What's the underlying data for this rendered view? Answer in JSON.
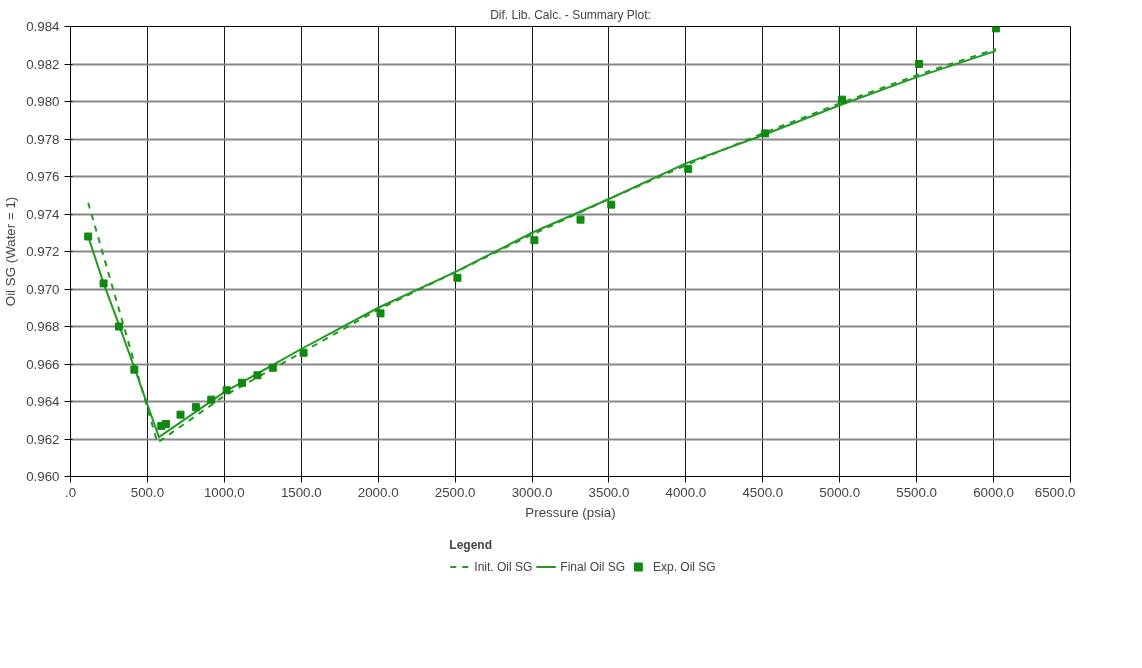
{
  "chart_data": {
    "type": "line",
    "title": "Dif. Lib. Calc. - Summary Plot:",
    "xlabel": "Pressure (psia)",
    "ylabel": "Oil SG (Water = 1)",
    "legend_title": "Legend",
    "xlim": [
      0,
      6500
    ],
    "xticks": [
      {
        "value": 0,
        "label": ".0"
      },
      {
        "value": 500,
        "label": "500.0"
      },
      {
        "value": 1000,
        "label": "1000.0"
      },
      {
        "value": 1500,
        "label": "1500.0"
      },
      {
        "value": 2000,
        "label": "2000.0"
      },
      {
        "value": 2500,
        "label": "2500.0"
      },
      {
        "value": 3000,
        "label": "3000.0"
      },
      {
        "value": 3500,
        "label": "3500.0"
      },
      {
        "value": 4000,
        "label": "4000.0"
      },
      {
        "value": 4500,
        "label": "4500.0"
      },
      {
        "value": 5000,
        "label": "5000.0"
      },
      {
        "value": 5500,
        "label": "5500.0"
      },
      {
        "value": 6000,
        "label": "6000.0"
      },
      {
        "value": 6500,
        "label": "6500.0"
      }
    ],
    "ylim": [
      0.96,
      0.984
    ],
    "yticks": [
      {
        "value": 0.96,
        "label": "0.960"
      },
      {
        "value": 0.962,
        "label": "0.962"
      },
      {
        "value": 0.964,
        "label": "0.964"
      },
      {
        "value": 0.966,
        "label": "0.966"
      },
      {
        "value": 0.968,
        "label": "0.968"
      },
      {
        "value": 0.97,
        "label": "0.970"
      },
      {
        "value": 0.972,
        "label": "0.972"
      },
      {
        "value": 0.974,
        "label": "0.974"
      },
      {
        "value": 0.976,
        "label": "0.976"
      },
      {
        "value": 0.978,
        "label": "0.978"
      },
      {
        "value": 0.98,
        "label": "0.980"
      },
      {
        "value": 0.982,
        "label": "0.982"
      },
      {
        "value": 0.984,
        "label": "0.984"
      }
    ],
    "grid": true,
    "legend": "bottom",
    "series": [
      {
        "name": "Init. Oil SG",
        "line_style": "dashed",
        "marker": "none",
        "color": "#229922",
        "x": [
          115,
          565,
          1000,
          1500,
          2000,
          2500,
          3000,
          3500,
          4000,
          4500,
          5000,
          5500,
          6015
        ],
        "values": [
          0.9746,
          0.9618,
          0.9643,
          0.9666,
          0.9689,
          0.9709,
          0.9729,
          0.9748,
          0.9766,
          0.9783,
          0.9799,
          0.9814,
          0.9828
        ]
      },
      {
        "name": "Final Oil SG",
        "line_style": "solid",
        "marker": "none",
        "color": "#229922",
        "x": [
          115,
          215,
          315,
          415,
          575,
          1000,
          1500,
          2000,
          2500,
          3000,
          3500,
          4000,
          4500,
          5000,
          5500,
          6015
        ],
        "values": [
          0.9728,
          0.9703,
          0.9681,
          0.9658,
          0.9621,
          0.9645,
          0.9668,
          0.969,
          0.9709,
          0.973,
          0.9748,
          0.9767,
          0.9782,
          0.9798,
          0.9813,
          0.9827
        ]
      },
      {
        "name": "Exp. Oil SG",
        "type": "scatter",
        "marker": "square",
        "color": "#118811",
        "x": [
          115,
          215,
          315,
          415,
          590,
          620,
          715,
          815,
          915,
          1015,
          1115,
          1215,
          1315,
          1515,
          2015,
          2515,
          3015,
          3315,
          3515,
          4015,
          4515,
          5015,
          5515,
          6015
        ],
        "values": [
          0.9728,
          0.9703,
          0.968,
          0.9657,
          0.9627,
          0.9628,
          0.9633,
          0.9637,
          0.9641,
          0.9646,
          0.965,
          0.9654,
          0.9658,
          0.9666,
          0.9687,
          0.9706,
          0.9726,
          0.9737,
          0.9745,
          0.9764,
          0.9783,
          0.9801,
          0.982,
          0.9839
        ]
      }
    ]
  }
}
